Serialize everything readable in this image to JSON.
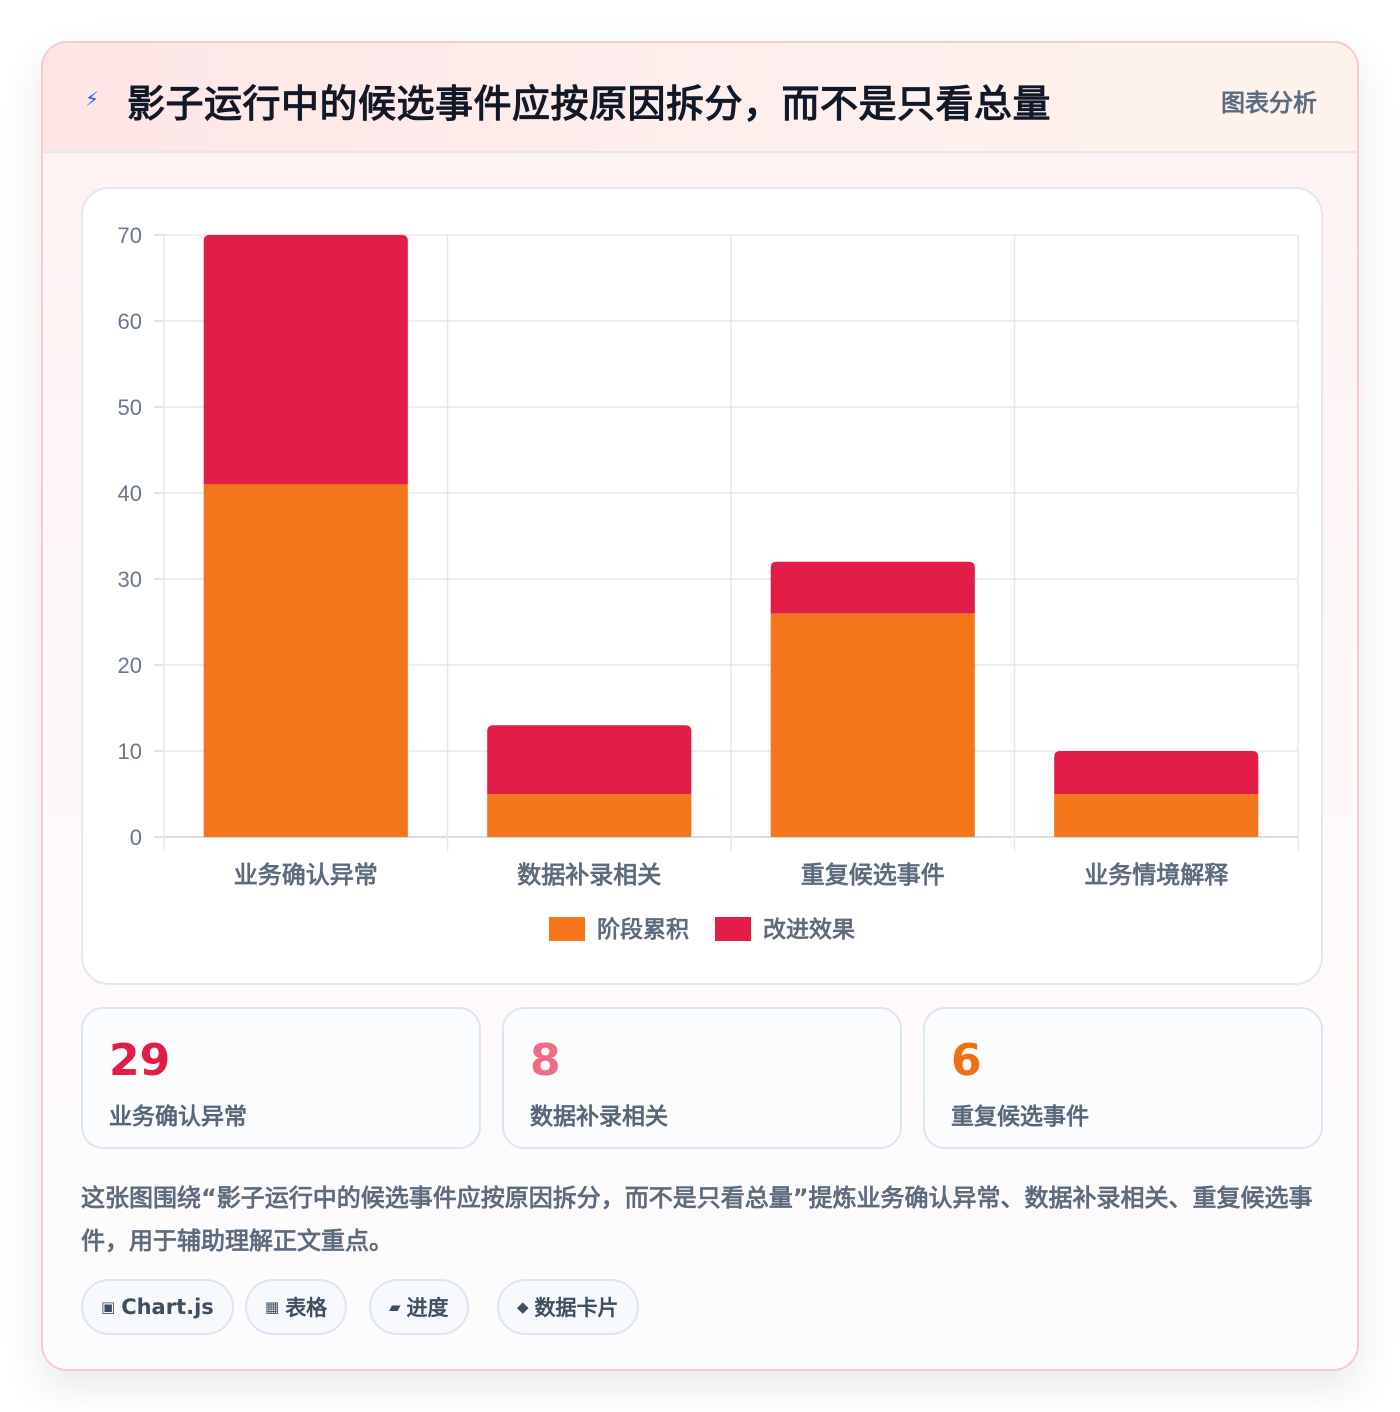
{
  "header": {
    "icon": "lightning-icon",
    "title": "影子运行中的候选事件应按原因拆分，而不是只看总量",
    "tag": "图表分析"
  },
  "chart_data": {
    "type": "bar",
    "stacked": true,
    "categories": [
      "业务确认异常",
      "数据补录相关",
      "重复候选事件",
      "业务情境解释"
    ],
    "series": [
      {
        "name": "阶段累积",
        "color": "#f5761a",
        "values": [
          41,
          5,
          26,
          5
        ]
      },
      {
        "name": "改进效果",
        "color": "#e11d48",
        "values": [
          29,
          8,
          6,
          5
        ]
      }
    ],
    "ylim": [
      0,
      70
    ],
    "yticks": [
      0,
      10,
      20,
      30,
      40,
      50,
      60,
      70
    ],
    "grid": true,
    "legend": "bottom"
  },
  "stats": [
    {
      "value": "29",
      "label": "业务确认异常",
      "color": "#e11d48"
    },
    {
      "value": "8",
      "label": "数据补录相关",
      "color": "#f26b86"
    },
    {
      "value": "6",
      "label": "重复候选事件",
      "color": "#f0700f"
    }
  ],
  "summary": "这张图围绕“影子运行中的候选事件应按原因拆分，而不是只看总量”提炼业务确认异常、数据补录相关、重复候选事件，用于辅助理解正文重点。",
  "chips": [
    {
      "icon": "▣",
      "icon_name": "chart-icon",
      "label": "Chart.js"
    },
    {
      "icon": "▦",
      "icon_name": "table-icon",
      "label": "表格"
    },
    {
      "icon": "▰",
      "icon_name": "progress-icon",
      "label": "进度"
    },
    {
      "icon": "◆",
      "icon_name": "data-card-icon",
      "label": "数据卡片"
    }
  ]
}
